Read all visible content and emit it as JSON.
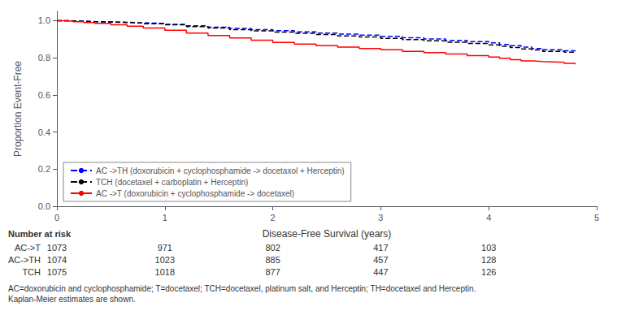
{
  "chart_data": {
    "type": "step",
    "ylabel": "Proportion Event-Free",
    "xlabel": "Disease-Free Survival (years)",
    "xlim": [
      0,
      5
    ],
    "ylim": [
      0.0,
      1.05
    ],
    "xticks": [
      0,
      1,
      2,
      3,
      4,
      5
    ],
    "yticks": [
      {
        "value": 0.0,
        "label": "0.0"
      },
      0.2,
      0.4,
      0.6,
      0.8,
      {
        "value": 1.0,
        "label": "1.0"
      }
    ],
    "grid": false,
    "legend": "lower left",
    "series": [
      {
        "name": "AC ->TH (doxorubicin + cyclophosphamide -> docetaxol + Herceptin)",
        "color": "#0000FF",
        "line_style": "dashed",
        "x": [
          0,
          0.05,
          0.15,
          0.25,
          0.35,
          0.5,
          0.65,
          0.8,
          1.0,
          1.2,
          1.4,
          1.6,
          1.8,
          2.0,
          2.2,
          2.4,
          2.6,
          2.8,
          3.0,
          3.2,
          3.4,
          3.6,
          3.8,
          4.0,
          4.1,
          4.2,
          4.3,
          4.4,
          4.5,
          4.6,
          4.7,
          4.8
        ],
        "values": [
          1.0,
          0.999,
          0.997,
          0.995,
          0.993,
          0.991,
          0.988,
          0.985,
          0.98,
          0.972,
          0.965,
          0.958,
          0.952,
          0.946,
          0.94,
          0.933,
          0.928,
          0.922,
          0.915,
          0.908,
          0.901,
          0.894,
          0.887,
          0.88,
          0.872,
          0.865,
          0.858,
          0.85,
          0.843,
          0.843,
          0.838,
          0.834
        ]
      },
      {
        "name": "TCH (docetaxel + carboplatin + Herceptin)",
        "color": "#000000",
        "line_style": "dashed",
        "x": [
          0,
          0.05,
          0.15,
          0.25,
          0.35,
          0.5,
          0.65,
          0.8,
          1.0,
          1.2,
          1.4,
          1.6,
          1.8,
          2.0,
          2.2,
          2.4,
          2.6,
          2.8,
          3.0,
          3.2,
          3.4,
          3.6,
          3.8,
          4.0,
          4.1,
          4.2,
          4.3,
          4.4,
          4.5,
          4.6,
          4.7,
          4.8
        ],
        "values": [
          1.0,
          0.999,
          0.997,
          0.995,
          0.993,
          0.99,
          0.987,
          0.983,
          0.978,
          0.968,
          0.96,
          0.952,
          0.945,
          0.938,
          0.932,
          0.925,
          0.918,
          0.912,
          0.905,
          0.898,
          0.891,
          0.884,
          0.877,
          0.869,
          0.862,
          0.855,
          0.848,
          0.842,
          0.835,
          0.835,
          0.83,
          0.825
        ]
      },
      {
        "name": "AC ->T (doxorubicin + cyclophosphamide -> docetaxel)",
        "color": "#FF0000",
        "line_style": "solid",
        "x": [
          0,
          0.05,
          0.15,
          0.25,
          0.35,
          0.5,
          0.65,
          0.8,
          1.0,
          1.2,
          1.4,
          1.6,
          1.8,
          2.0,
          2.2,
          2.4,
          2.6,
          2.8,
          3.0,
          3.2,
          3.4,
          3.6,
          3.8,
          4.0,
          4.1,
          4.2,
          4.3,
          4.4,
          4.5,
          4.6,
          4.7,
          4.8
        ],
        "values": [
          1.0,
          0.998,
          0.994,
          0.99,
          0.985,
          0.978,
          0.97,
          0.96,
          0.948,
          0.933,
          0.92,
          0.907,
          0.895,
          0.883,
          0.874,
          0.865,
          0.858,
          0.85,
          0.843,
          0.835,
          0.828,
          0.82,
          0.812,
          0.804,
          0.797,
          0.79,
          0.783,
          0.78,
          0.778,
          0.775,
          0.77,
          0.764
        ]
      }
    ],
    "table": {
      "title": "Number at risk",
      "x": [
        0,
        1,
        2,
        3,
        4
      ],
      "rows": [
        {
          "label": "AC->T",
          "values": [
            1073,
            971,
            802,
            417,
            103
          ]
        },
        {
          "label": "AC->TH",
          "values": [
            1074,
            1023,
            885,
            457,
            128
          ]
        },
        {
          "label": "TCH",
          "values": [
            1075,
            1018,
            877,
            447,
            126
          ]
        }
      ]
    },
    "annotations": [
      "AC=doxorubicin and cyclophosphamide; T=docetaxel; TCH=docetaxel, platinum salt, and Herceptin; TH=docetaxel and Herceptin.",
      "Kaplan-Meier estimates are shown."
    ]
  }
}
